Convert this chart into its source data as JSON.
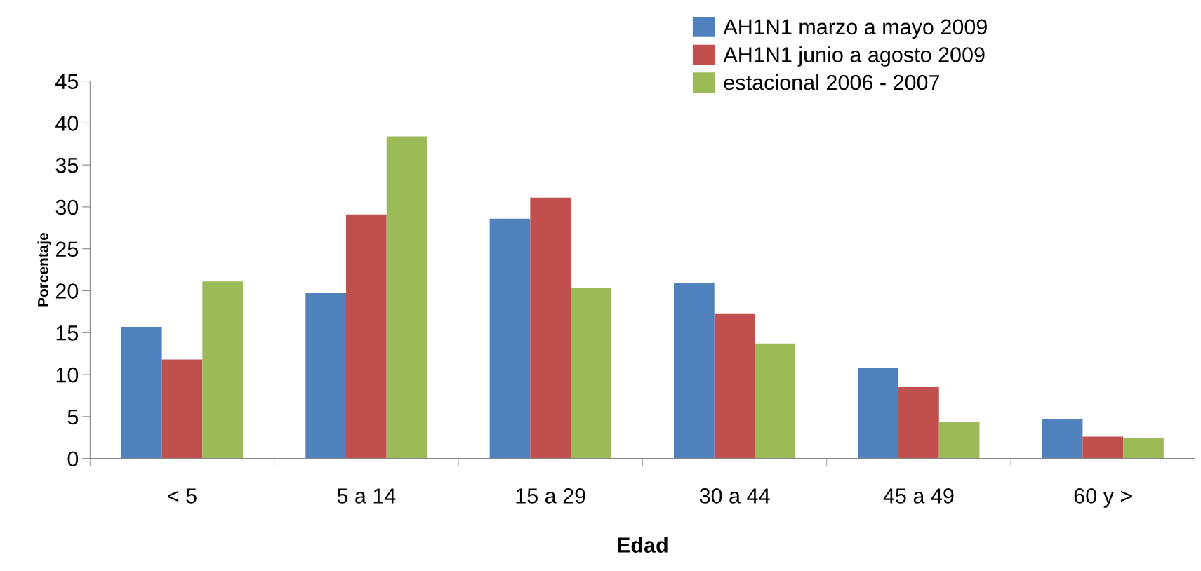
{
  "chart_data": {
    "type": "bar",
    "xlabel": "Edad",
    "ylabel": "Porcentaje",
    "categories": [
      "< 5",
      "5 a 14",
      "15 a 29",
      "30 a 44",
      "45 a 49",
      "60 y >"
    ],
    "series": [
      {
        "name": "AH1N1 marzo a mayo 2009",
        "color": "#4f81bd",
        "values": [
          15.7,
          19.8,
          28.6,
          20.9,
          10.8,
          4.7
        ]
      },
      {
        "name": "AH1N1 junio a agosto 2009",
        "color": "#c0504d",
        "values": [
          11.8,
          29.1,
          31.1,
          17.3,
          8.5,
          2.6
        ]
      },
      {
        "name": "estacional 2006 - 2007",
        "color": "#9bbb59",
        "values": [
          21.1,
          38.4,
          20.3,
          13.7,
          4.4,
          2.4
        ]
      }
    ],
    "ylim": [
      0,
      45
    ],
    "yticks": [
      0,
      5,
      10,
      15,
      20,
      25,
      30,
      35,
      40,
      45
    ],
    "grid": false,
    "legend": "top right"
  }
}
